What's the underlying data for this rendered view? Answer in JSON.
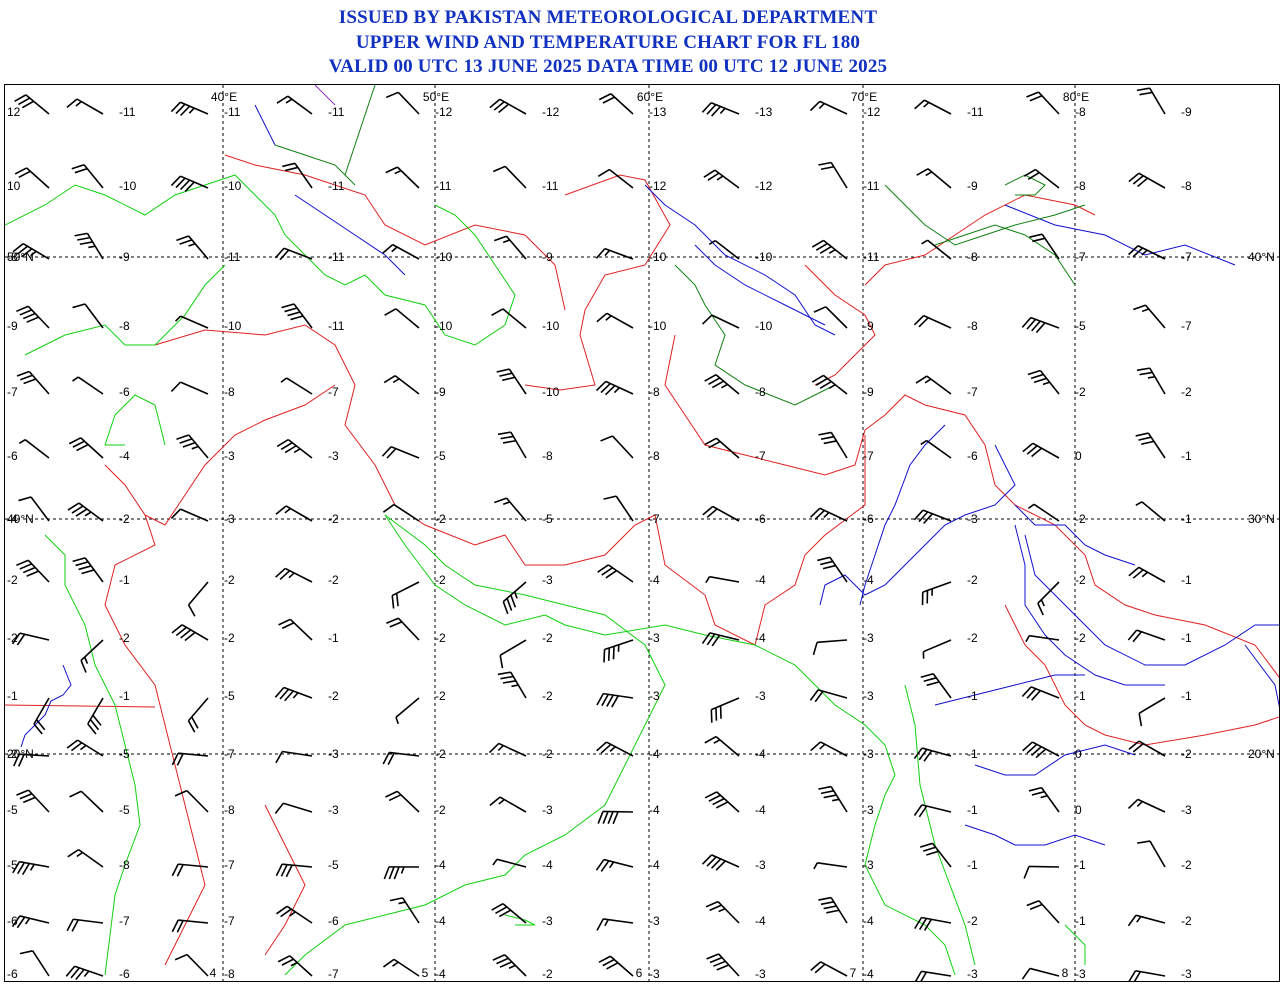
{
  "header": {
    "line1": "ISSUED BY PAKISTAN METEOROLOGICAL DEPARTMENT",
    "line2": "UPPER WIND AND TEMPERATURE CHART FOR FL 180",
    "line3": "VALID 00 UTC 13 JUNE 2025 DATA TIME 00 UTC 12 JUNE 2025"
  },
  "colors": {
    "title": "#1030c0",
    "border_political": "#e02020",
    "coast": "#10d010",
    "river": "#1010d0",
    "region_border": "#108010",
    "grid": "#000000",
    "barb": "#000000"
  },
  "map": {
    "longitudes": [
      "40°E",
      "50°E",
      "60°E",
      "70°E",
      "80°E"
    ],
    "latitudes_left": [
      "50°N",
      "40°N",
      "20°N"
    ],
    "latitudes_right": [
      "40°N",
      "30°N",
      "20°N"
    ],
    "bottom_edge_labels": [
      "4",
      "5",
      "6",
      "7",
      "8"
    ],
    "rows": [
      {
        "left": "12",
        "temps": [
          "-11",
          "-11",
          "-11",
          "-12",
          "-12",
          "-13",
          "-13",
          "-12",
          "-11",
          "-8",
          "-9"
        ]
      },
      {
        "left": "10",
        "temps": [
          "-10",
          "-10",
          "-11",
          "-11",
          "-11",
          "-12",
          "-12",
          "-11",
          "-9",
          "-8",
          "-8"
        ]
      },
      {
        "left": "-8",
        "temps": [
          "-9",
          "-11",
          "-11",
          "-10",
          "-9",
          "-10",
          "-10",
          "-11",
          "-8",
          "-7",
          "-7"
        ]
      },
      {
        "left": "-9",
        "temps": [
          "-8",
          "-10",
          "-11",
          "-10",
          "-10",
          "-10",
          "-10",
          "-9",
          "-8",
          "-5",
          "-7"
        ]
      },
      {
        "left": "-7",
        "temps": [
          "-6",
          "-8",
          "-7",
          "-9",
          "-10",
          "-8",
          "-8",
          "-9",
          "-7",
          "-2",
          "-2"
        ]
      },
      {
        "left": "-6",
        "temps": [
          "-4",
          "-3",
          "-3",
          "-5",
          "-8",
          "-8",
          "-7",
          "-7",
          "-6",
          "0",
          "-1"
        ]
      },
      {
        "left": "-4",
        "temps": [
          "-2",
          "-3",
          "-2",
          "-2",
          "-5",
          "-7",
          "-6",
          "-6",
          "-3",
          "-2",
          "-1"
        ]
      },
      {
        "left": "-2",
        "temps": [
          "-1",
          "-2",
          "-2",
          "-2",
          "-3",
          "-4",
          "-4",
          "-4",
          "-2",
          "-2",
          "-1"
        ]
      },
      {
        "left": "-2",
        "temps": [
          "-2",
          "-2",
          "-1",
          "-2",
          "-2",
          "-3",
          "-4",
          "-3",
          "-2",
          "-2",
          "-1"
        ]
      },
      {
        "left": "-1",
        "temps": [
          "-1",
          "-5",
          "-2",
          "-2",
          "-2",
          "-3",
          "-3",
          "-3",
          "-1",
          "-1",
          "-1"
        ]
      },
      {
        "left": "-2",
        "temps": [
          "-5",
          "-7",
          "-3",
          "-2",
          "-2",
          "-4",
          "-4",
          "-3",
          "-1",
          "0",
          "-2"
        ]
      },
      {
        "left": "-5",
        "temps": [
          "-5",
          "-8",
          "-3",
          "-2",
          "-3",
          "-4",
          "-4",
          "-3",
          "-1",
          "0",
          "-3"
        ]
      },
      {
        "left": "-5",
        "temps": [
          "-8",
          "-7",
          "-5",
          "-4",
          "-4",
          "-4",
          "-3",
          "-3",
          "-1",
          "-1",
          "-2"
        ]
      },
      {
        "left": "-6",
        "temps": [
          "-7",
          "-7",
          "-6",
          "-4",
          "-3",
          "-3",
          "-4",
          "-4",
          "-2",
          "-1",
          "-2"
        ]
      },
      {
        "left": "-6",
        "temps": [
          "-6",
          "-8",
          "-7",
          "-4",
          "-2",
          "-3",
          "-3",
          "-4",
          "-3",
          "-3",
          "-3"
        ]
      }
    ]
  }
}
